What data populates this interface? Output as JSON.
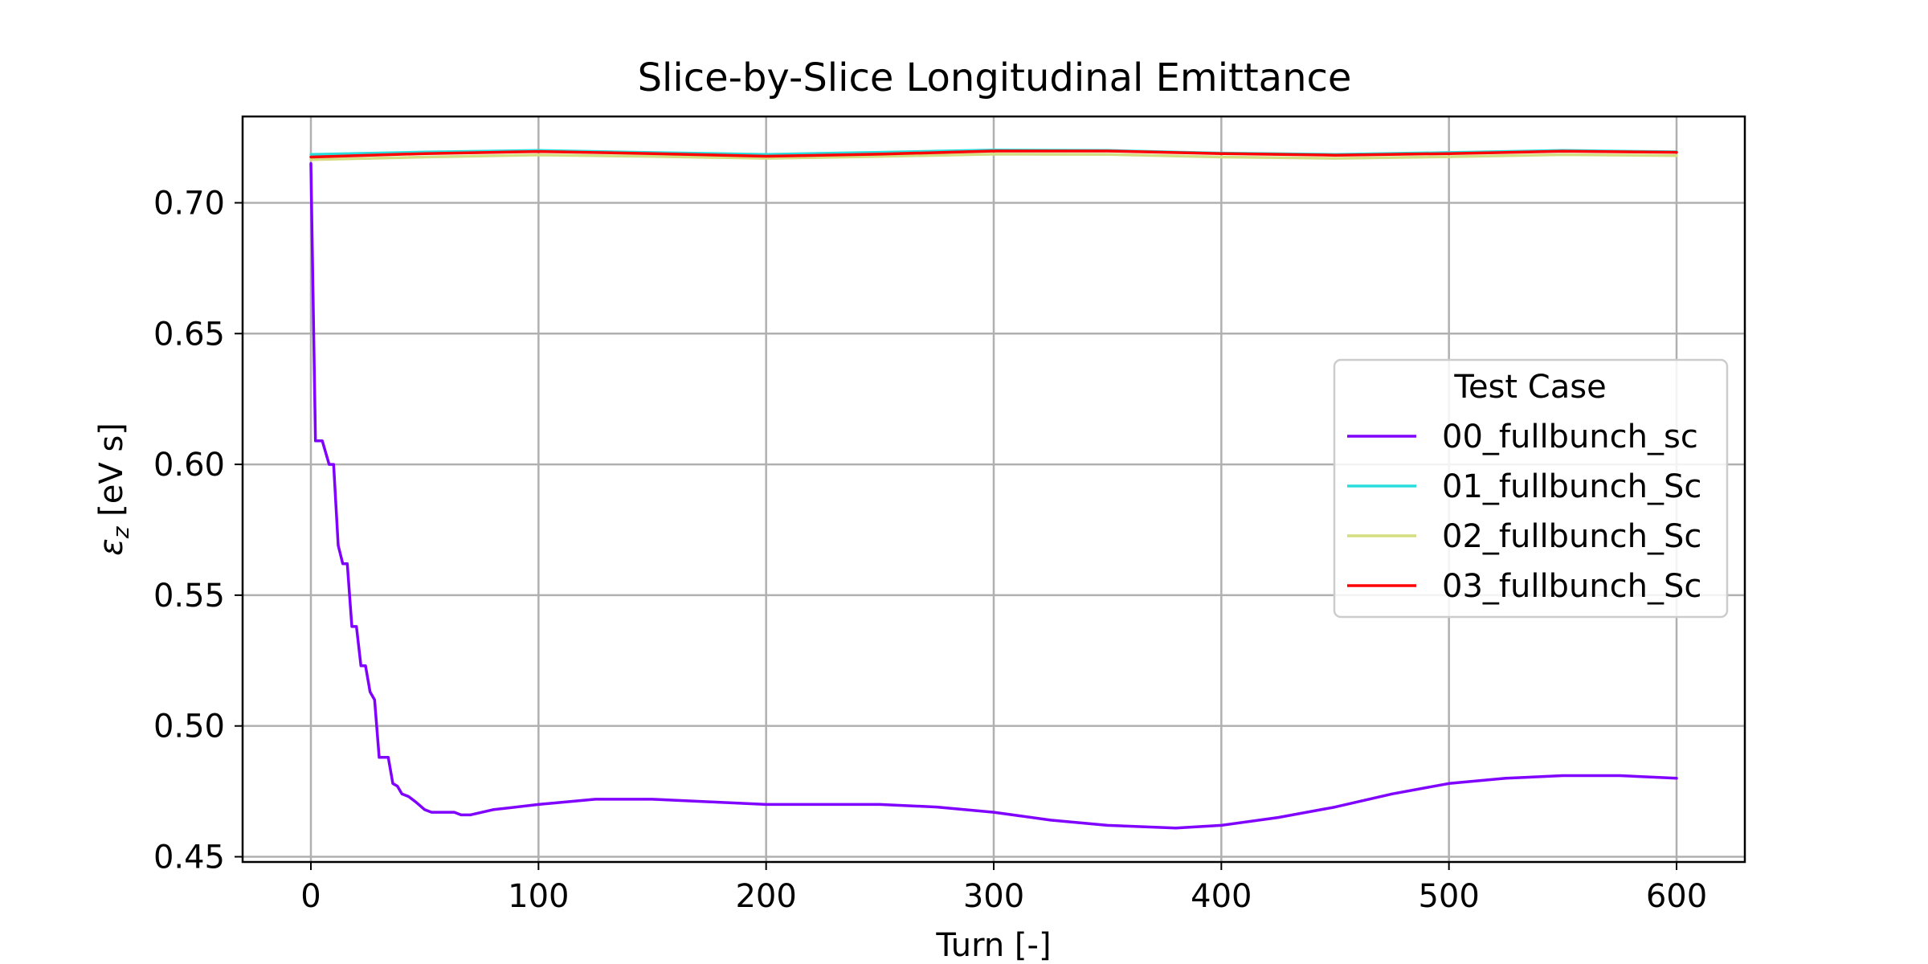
{
  "chart_data": {
    "type": "line",
    "title": "Slice-by-Slice Longitudinal Emittance",
    "xlabel": "Turn [-]",
    "ylabel_symbol": "ε",
    "ylabel_subscript": "z",
    "ylabel_unit": " [eV s]",
    "xlim": [
      -30,
      630
    ],
    "ylim": [
      0.448,
      0.733
    ],
    "xticks": [
      0,
      100,
      200,
      300,
      400,
      500,
      600
    ],
    "xtick_labels": [
      "0",
      "100",
      "200",
      "300",
      "400",
      "500",
      "600"
    ],
    "yticks": [
      0.45,
      0.5,
      0.55,
      0.6,
      0.65,
      0.7
    ],
    "ytick_labels": [
      "0.45",
      "0.50",
      "0.55",
      "0.60",
      "0.65",
      "0.70"
    ],
    "grid": true,
    "legend": {
      "title": "Test Case",
      "placement": "right"
    },
    "series": [
      {
        "name": "00_fullbunch_sc",
        "color": "#8000ff",
        "x": [
          0,
          2,
          5,
          8,
          10,
          12,
          14,
          16,
          18,
          20,
          22,
          24,
          26,
          28,
          30,
          32,
          34,
          36,
          38,
          40,
          43,
          46,
          50,
          53,
          56,
          60,
          63,
          66,
          70,
          80,
          100,
          125,
          150,
          175,
          200,
          225,
          250,
          275,
          300,
          325,
          350,
          380,
          400,
          425,
          450,
          475,
          500,
          525,
          550,
          575,
          600
        ],
        "y": [
          0.715,
          0.609,
          0.609,
          0.6,
          0.6,
          0.569,
          0.562,
          0.562,
          0.538,
          0.538,
          0.523,
          0.523,
          0.513,
          0.51,
          0.488,
          0.488,
          0.488,
          0.478,
          0.477,
          0.474,
          0.473,
          0.471,
          0.468,
          0.467,
          0.467,
          0.467,
          0.467,
          0.466,
          0.466,
          0.468,
          0.47,
          0.472,
          0.472,
          0.471,
          0.47,
          0.47,
          0.47,
          0.469,
          0.467,
          0.464,
          0.462,
          0.461,
          0.462,
          0.465,
          0.469,
          0.474,
          0.478,
          0.48,
          0.481,
          0.481,
          0.48
        ]
      },
      {
        "name": "01_fullbunch_Sc",
        "color": "#2adddd",
        "x": [
          0,
          50,
          100,
          150,
          200,
          250,
          300,
          350,
          400,
          450,
          500,
          550,
          600
        ],
        "y": [
          0.7185,
          0.7194,
          0.72,
          0.7192,
          0.7185,
          0.7193,
          0.7202,
          0.72,
          0.719,
          0.7185,
          0.7192,
          0.72,
          0.7195
        ]
      },
      {
        "name": "02_fullbunch_Sc",
        "color": "#d4dd80",
        "x": [
          0,
          50,
          100,
          150,
          200,
          250,
          300,
          350,
          400,
          450,
          500,
          550,
          600
        ],
        "y": [
          0.7165,
          0.7175,
          0.7183,
          0.7177,
          0.717,
          0.7177,
          0.7186,
          0.7185,
          0.7175,
          0.717,
          0.7176,
          0.7184,
          0.718
        ]
      },
      {
        "name": "03_fullbunch_Sc",
        "color": "#ff0000",
        "x": [
          0,
          50,
          100,
          150,
          200,
          250,
          300,
          350,
          400,
          450,
          500,
          550,
          600
        ],
        "y": [
          0.7175,
          0.7188,
          0.7196,
          0.7188,
          0.7178,
          0.7186,
          0.7198,
          0.7198,
          0.7188,
          0.7182,
          0.7188,
          0.7197,
          0.7193
        ]
      }
    ]
  }
}
